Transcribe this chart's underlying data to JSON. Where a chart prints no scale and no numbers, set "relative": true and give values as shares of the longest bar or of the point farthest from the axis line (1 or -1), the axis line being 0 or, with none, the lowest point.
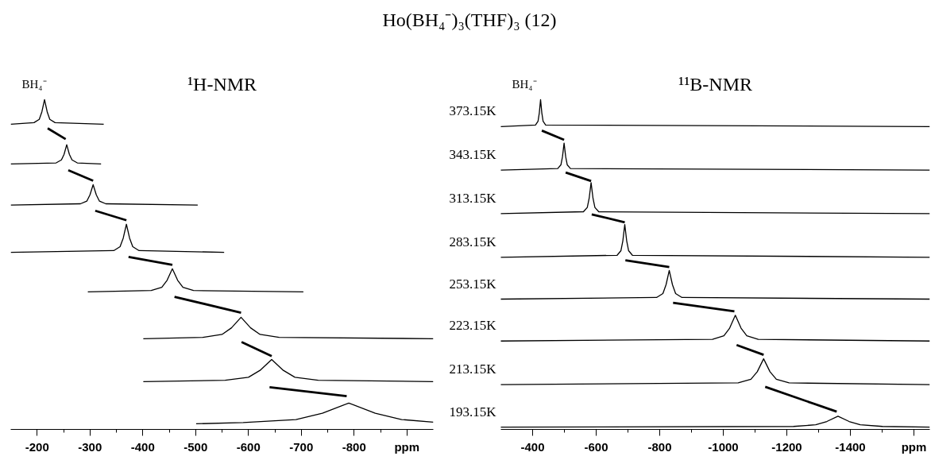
{
  "chart_data": [
    {
      "type": "line",
      "title": "Ho(BH₄⁻)₃(THF)₃ (12)",
      "subtitle": "¹H-NMR",
      "xlabel": "ppm",
      "annotations": [
        "BH₄⁻"
      ],
      "relative": true,
      "xlim": [
        -150,
        -950
      ],
      "xticks": [
        -200,
        -300,
        -400,
        -500,
        -600,
        -700,
        -800,
        {
          "value": -900,
          "label": null
        }
      ],
      "series": [
        {
          "color": "#000000",
          "x": [
            -150,
            -194,
            -204,
            -209,
            -214,
            -219,
            -224,
            -234,
            -326
          ],
          "values": [
            0.925,
            0.93,
            0.94,
            0.963,
            1.0,
            0.963,
            0.94,
            0.93,
            0.925
          ]
        },
        {
          "color": "#000000",
          "x": [
            -150,
            -236,
            -246,
            -251,
            -256,
            -261,
            -266,
            -276,
            -321
          ],
          "values": [
            0.805,
            0.808,
            0.817,
            0.834,
            0.863,
            0.834,
            0.817,
            0.808,
            0.805
          ]
        },
        {
          "color": "#000000",
          "x": [
            -150,
            -282,
            -294,
            -300,
            -306,
            -312,
            -318,
            -330,
            -504
          ],
          "values": [
            0.68,
            0.684,
            0.692,
            0.711,
            0.742,
            0.711,
            0.692,
            0.684,
            0.68
          ]
        },
        {
          "color": "#000000",
          "x": [
            -150,
            -345,
            -357,
            -363,
            -369,
            -375,
            -381,
            -393,
            -554
          ],
          "values": [
            0.537,
            0.542,
            0.554,
            0.58,
            0.622,
            0.58,
            0.554,
            0.542,
            0.537
          ]
        },
        {
          "color": "#000000",
          "x": [
            -296,
            -416,
            -436,
            -446,
            -456,
            -466,
            -476,
            -496,
            -704
          ],
          "values": [
            0.417,
            0.421,
            0.431,
            0.452,
            0.487,
            0.452,
            0.431,
            0.421,
            0.417
          ]
        },
        {
          "color": "#000000",
          "x": [
            -401,
            -514,
            -550,
            -568,
            -586,
            -604,
            -622,
            -658,
            -950
          ],
          "values": [
            0.275,
            0.279,
            0.288,
            0.308,
            0.34,
            0.308,
            0.288,
            0.279,
            0.275
          ]
        },
        {
          "color": "#000000",
          "x": [
            -401,
            -556,
            -600,
            -622,
            -644,
            -666,
            -688,
            -732,
            -950
          ],
          "values": [
            0.145,
            0.149,
            0.158,
            0.179,
            0.212,
            0.179,
            0.158,
            0.149,
            0.145
          ]
        },
        {
          "color": "#000000",
          "x": [
            -501,
            -590,
            -690,
            -740,
            -790,
            -840,
            -890,
            -950
          ],
          "values": [
            0.017,
            0.021,
            0.03,
            0.049,
            0.08,
            0.049,
            0.03,
            0.022
          ]
        },
        {
          "color": "#000000",
          "x": [
            -220,
            -254
          ],
          "values": [
            0.913,
            0.88
          ]
        },
        {
          "color": "#000000",
          "x": [
            -259,
            -306
          ],
          "values": [
            0.786,
            0.754
          ]
        },
        {
          "color": "#000000",
          "x": [
            -310,
            -369
          ],
          "values": [
            0.663,
            0.634
          ]
        },
        {
          "color": "#000000",
          "x": [
            -373,
            -456
          ],
          "values": [
            0.523,
            0.499
          ]
        },
        {
          "color": "#000000",
          "x": [
            -460,
            -586
          ],
          "values": [
            0.402,
            0.354
          ]
        },
        {
          "color": "#000000",
          "x": [
            -587,
            -644
          ],
          "values": [
            0.265,
            0.222
          ]
        },
        {
          "color": "#000000",
          "x": [
            -640,
            -786
          ],
          "values": [
            0.128,
            0.101
          ]
        }
      ]
    },
    {
      "type": "line",
      "subtitle": "¹¹B-NMR",
      "xlabel": "ppm",
      "annotations": [
        "BH₄⁻"
      ],
      "relative": true,
      "xlim": [
        -300,
        -1650
      ],
      "xticks": [
        -400,
        -600,
        -800,
        -1000,
        -1200,
        -1400,
        {
          "value": -1600,
          "label": null
        }
      ],
      "series": [
        {
          "name": "373.15K",
          "color": "#000000",
          "x": [
            -300,
            -409,
            -417,
            -421,
            -425,
            -429,
            -433,
            -441,
            -1650
          ],
          "values": [
            0.918,
            0.923,
            0.934,
            0.959,
            1.0,
            0.959,
            0.934,
            0.923,
            0.918
          ]
        },
        {
          "name": "343.15K",
          "color": "#000000",
          "x": [
            -300,
            -479,
            -489,
            -494,
            -499,
            -504,
            -509,
            -519,
            -1650
          ],
          "values": [
            0.786,
            0.791,
            0.802,
            0.827,
            0.868,
            0.827,
            0.802,
            0.791,
            0.786
          ]
        },
        {
          "name": "313.15K",
          "color": "#000000",
          "x": [
            -300,
            -560,
            -572,
            -578,
            -584,
            -590,
            -596,
            -608,
            -1650
          ],
          "values": [
            0.654,
            0.66,
            0.673,
            0.701,
            0.748,
            0.701,
            0.673,
            0.66,
            0.654
          ]
        },
        {
          "name": "283.15K",
          "color": "#000000",
          "x": [
            -300,
            -666,
            -678,
            -684,
            -690,
            -696,
            -702,
            -714,
            -1650
          ],
          "values": [
            0.522,
            0.528,
            0.542,
            0.572,
            0.621,
            0.572,
            0.542,
            0.528,
            0.522
          ]
        },
        {
          "name": "253.15K",
          "color": "#000000",
          "x": [
            -300,
            -790,
            -810,
            -820,
            -830,
            -840,
            -850,
            -870,
            -1650
          ],
          "values": [
            0.395,
            0.4,
            0.412,
            0.439,
            0.482,
            0.439,
            0.412,
            0.4,
            0.395
          ]
        },
        {
          "name": "223.15K",
          "color": "#000000",
          "x": [
            -300,
            -966,
            -1002,
            -1020,
            -1038,
            -1056,
            -1074,
            -1110,
            -1650
          ],
          "values": [
            0.268,
            0.273,
            0.284,
            0.307,
            0.346,
            0.307,
            0.284,
            0.273,
            0.268
          ]
        },
        {
          "name": "213.15K",
          "color": "#000000",
          "x": [
            -300,
            -1047,
            -1087,
            -1107,
            -1127,
            -1147,
            -1167,
            -1207,
            -1650
          ],
          "values": [
            0.136,
            0.141,
            0.152,
            0.175,
            0.214,
            0.175,
            0.152,
            0.141,
            0.136
          ]
        },
        {
          "name": "193.15K",
          "color": "#000000",
          "x": [
            -300,
            -1221,
            -1291,
            -1326,
            -1361,
            -1396,
            -1431,
            -1501,
            -1650
          ],
          "values": [
            0.007,
            0.009,
            0.014,
            0.024,
            0.04,
            0.024,
            0.014,
            0.009,
            0.007
          ]
        },
        {
          "color": "#000000",
          "x": [
            -429,
            -499
          ],
          "values": [
            0.906,
            0.878
          ]
        },
        {
          "color": "#000000",
          "x": [
            -504,
            -584
          ],
          "values": [
            0.779,
            0.753
          ]
        },
        {
          "color": "#000000",
          "x": [
            -586,
            -690
          ],
          "values": [
            0.652,
            0.628
          ]
        },
        {
          "color": "#000000",
          "x": [
            -692,
            -830
          ],
          "values": [
            0.513,
            0.492
          ]
        },
        {
          "color": "#000000",
          "x": [
            -842,
            -1035
          ],
          "values": [
            0.384,
            0.358
          ]
        },
        {
          "color": "#000000",
          "x": [
            -1042,
            -1127
          ],
          "values": [
            0.256,
            0.226
          ]
        },
        {
          "color": "#000000",
          "x": [
            -1132,
            -1357
          ],
          "values": [
            0.129,
            0.054
          ]
        }
      ]
    }
  ]
}
